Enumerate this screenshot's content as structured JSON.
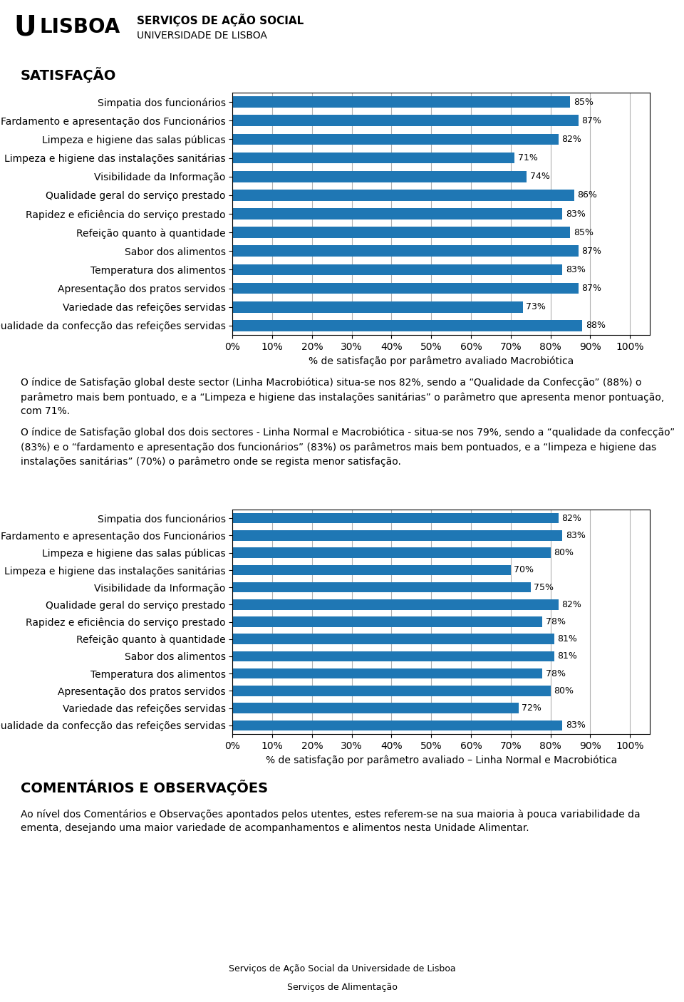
{
  "chart_data": [
    {
      "type": "bar",
      "orientation": "horizontal",
      "title": "SATISFAÇÃO",
      "annotations": [
        "U",
        "LISBOA",
        "SERVIÇOS DE AÇÃO SOCIAL",
        "UNIVERSIDADE DE LISBOA",
        "O índice de Satisfação global deste sector (Linha Macrobiótica) situa-se nos 82%, sendo a “Qualidade da Confecção” (88%) o parâmetro mais bem pontuado, e a “Limpeza e higiene das instalações sanitárias” o parâmetro que apresenta menor pontuação, com 71%.",
        "O índice de Satisfação global dos dois sectores - Linha Normal e Macrobiótica - situa-se nos 79%, sendo a “qualidade da confecção” (83%) e o “fardamento e apresentação dos funcionários” (83%) os parâmetros mais bem pontuados, e a “limpeza e higiene das instalações sanitárias” (70%) o parâmetro onde se regista menor satisfação."
      ],
      "categories": [
        "Simpatia dos funcionários",
        "Fardamento e apresentação dos Funcionários",
        "Limpeza e higiene das salas públicas",
        "Limpeza e higiene das instalações sanitárias",
        "Visibilidade da Informação",
        "Qualidade geral do serviço prestado",
        "Rapidez e eficiência do serviço prestado",
        "Refeição quanto à quantidade",
        "Sabor dos alimentos",
        "Temperatura dos alimentos",
        "Apresentação dos pratos servidos",
        "Variedade das refeições servidas",
        "Qualidade da confecção das refeições servidas"
      ],
      "values": [
        85,
        87,
        82,
        71,
        74,
        86,
        83,
        85,
        87,
        83,
        87,
        73,
        88
      ],
      "value_labels": [
        "85%",
        "87%",
        "82%",
        "71%",
        "74%",
        "86%",
        "83%",
        "85%",
        "87%",
        "83%",
        "87%",
        "73%",
        "88%"
      ],
      "data_labels": true,
      "x_label": "% de satisfação por parâmetro avaliado Macrobiótica",
      "xlim": [
        0,
        105
      ],
      "xticks": [
        {
          "value": 0,
          "label": "0%"
        },
        {
          "value": 10,
          "label": "10%"
        },
        {
          "value": 20,
          "label": "20%"
        },
        {
          "value": 30,
          "label": "30%"
        },
        {
          "value": 40,
          "label": "40%"
        },
        {
          "value": 50,
          "label": "50%"
        },
        {
          "value": 60,
          "label": "60%"
        },
        {
          "value": 70,
          "label": "70%"
        },
        {
          "value": 80,
          "label": "80%"
        },
        {
          "value": 90,
          "label": "90%"
        },
        {
          "value": 100,
          "label": "100%"
        }
      ],
      "grid": true
    },
    {
      "type": "bar",
      "orientation": "horizontal",
      "annotations": [
        "COMENTÁRIOS E OBSERVAÇÕES",
        "Ao nível dos Comentários e Observações apontados pelos utentes, estes referem-se na sua maioria à pouca variabilidade da ementa, desejando uma maior variedade de acompanhamentos e alimentos nesta Unidade Alimentar.",
        "Serviços de Ação Social da Universidade de Lisboa",
        "Serviços de Alimentação"
      ],
      "categories": [
        "Simpatia dos funcionários",
        "Fardamento e apresentação dos Funcionários",
        "Limpeza e higiene das salas públicas",
        "Limpeza e higiene das instalações sanitárias",
        "Visibilidade da Informação",
        "Qualidade geral do serviço prestado",
        "Rapidez e eficiência do serviço prestado",
        "Refeição quanto à quantidade",
        "Sabor dos alimentos",
        "Temperatura dos alimentos",
        "Apresentação dos pratos servidos",
        "Variedade das refeições servidas",
        "Qualidade da confecção das refeições servidas"
      ],
      "values": [
        82,
        83,
        80,
        70,
        75,
        82,
        78,
        81,
        81,
        78,
        80,
        72,
        83
      ],
      "value_labels": [
        "82%",
        "83%",
        "80%",
        "70%",
        "75%",
        "82%",
        "78%",
        "81%",
        "81%",
        "78%",
        "80%",
        "72%",
        "83%"
      ],
      "data_labels": true,
      "x_label": "% de satisfação por parâmetro avaliado – Linha Normal e Macrobiótica",
      "xlim": [
        0,
        105
      ],
      "xticks": [
        {
          "value": 0,
          "label": "0%"
        },
        {
          "value": 10,
          "label": "10%"
        },
        {
          "value": 20,
          "label": "20%"
        },
        {
          "value": 30,
          "label": "30%"
        },
        {
          "value": 40,
          "label": "40%"
        },
        {
          "value": 50,
          "label": "50%"
        },
        {
          "value": 60,
          "label": "60%"
        },
        {
          "value": 70,
          "label": "70%"
        },
        {
          "value": 80,
          "label": "80%"
        },
        {
          "value": 90,
          "label": "90%"
        },
        {
          "value": 100,
          "label": "100%"
        }
      ],
      "grid": true
    }
  ]
}
